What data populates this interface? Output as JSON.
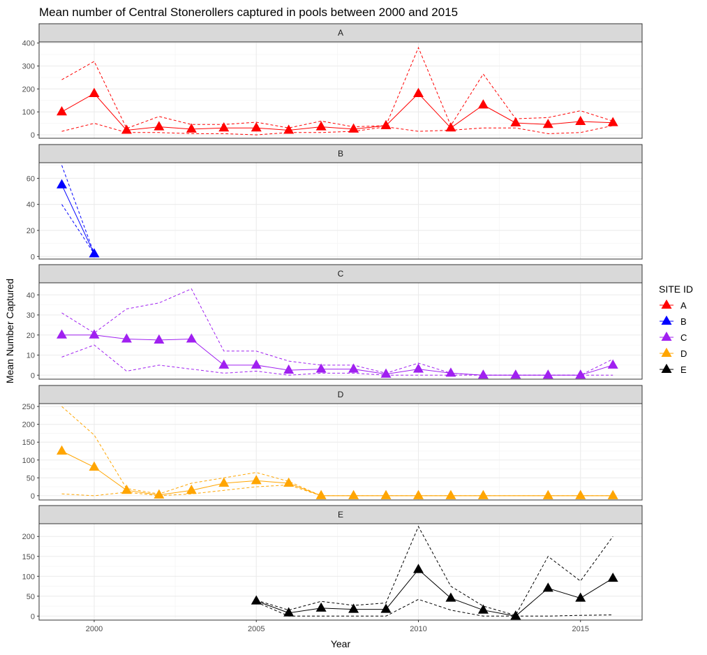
{
  "chart_data": {
    "type": "line",
    "title": "Mean number of Central Stonerollers captured in pools between 2000 and 2015",
    "xlabel": "Year",
    "ylabel": "Mean Number Captured",
    "xlim": [
      1998.3,
      2016.9
    ],
    "x_ticks": [
      2000,
      2005,
      2010,
      2015
    ],
    "legend": {
      "title": "SITE ID",
      "placement": "right",
      "entries": [
        "A",
        "B",
        "C",
        "D",
        "E"
      ]
    },
    "grid": true,
    "facets": [
      {
        "label": "A",
        "color": "#ff0000",
        "ylim": [
          -15,
          405
        ],
        "y_ticks": [
          0,
          100,
          200,
          300,
          400
        ],
        "x": [
          1999,
          2000,
          2001,
          2002,
          2003,
          2004,
          2005,
          2006,
          2007,
          2008,
          2009,
          2010,
          2011,
          2012,
          2013,
          2014,
          2015,
          2016
        ],
        "mean": [
          100,
          180,
          20,
          35,
          25,
          30,
          30,
          20,
          35,
          25,
          40,
          180,
          30,
          130,
          52,
          45,
          58,
          53
        ],
        "upper": [
          240,
          320,
          28,
          80,
          45,
          45,
          55,
          30,
          60,
          35,
          40,
          380,
          40,
          265,
          70,
          75,
          105,
          60
        ],
        "lower": [
          15,
          50,
          10,
          10,
          5,
          5,
          0,
          10,
          10,
          15,
          35,
          15,
          20,
          30,
          30,
          5,
          10,
          40
        ]
      },
      {
        "label": "B",
        "color": "#0000ff",
        "ylim": [
          -2,
          72
        ],
        "y_ticks": [
          0,
          20,
          40,
          60
        ],
        "x": [
          1999,
          2000
        ],
        "mean": [
          55,
          2
        ],
        "upper": [
          70,
          2
        ],
        "lower": [
          40,
          2
        ]
      },
      {
        "label": "C",
        "color": "#a020f0",
        "ylim": [
          -2,
          46
        ],
        "y_ticks": [
          0,
          10,
          20,
          30,
          40
        ],
        "x": [
          1999,
          2000,
          2001,
          2002,
          2003,
          2004,
          2005,
          2006,
          2007,
          2008,
          2009,
          2010,
          2011,
          2012,
          2013,
          2014,
          2015,
          2016
        ],
        "mean": [
          20,
          20,
          18,
          17.5,
          18,
          5,
          5,
          2.5,
          3,
          3,
          0.5,
          3,
          1,
          0,
          0,
          0,
          0,
          5
        ],
        "upper": [
          31,
          21,
          33,
          36,
          43,
          12,
          12,
          7,
          5,
          5,
          1,
          6,
          1,
          0,
          0,
          0,
          0,
          8
        ],
        "lower": [
          9,
          15,
          2,
          5,
          3,
          1,
          2,
          0,
          1,
          1,
          0,
          0,
          0,
          0,
          0,
          0,
          0,
          0
        ]
      },
      {
        "label": "D",
        "color": "#ffa500",
        "ylim": [
          -12,
          258
        ],
        "y_ticks": [
          0,
          50,
          100,
          150,
          200,
          250
        ],
        "x": [
          1999,
          2000,
          2001,
          2002,
          2003,
          2004,
          2005,
          2006,
          2007,
          2008,
          2009,
          2010,
          2011,
          2012,
          2014,
          2015,
          2016
        ],
        "mean": [
          125,
          80,
          15,
          2,
          15,
          35,
          42,
          35,
          0,
          0,
          0,
          0,
          0,
          0,
          0,
          0,
          0
        ],
        "upper": [
          250,
          170,
          20,
          5,
          35,
          50,
          65,
          40,
          0,
          0,
          0,
          0,
          0,
          0,
          0,
          0,
          0
        ],
        "lower": [
          5,
          0,
          10,
          0,
          5,
          15,
          25,
          30,
          0,
          0,
          0,
          0,
          0,
          0,
          0,
          0,
          0
        ]
      },
      {
        "label": "E",
        "color": "#000000",
        "ylim": [
          -10,
          232
        ],
        "y_ticks": [
          0,
          50,
          100,
          150,
          200
        ],
        "x": [
          2005,
          2006,
          2007,
          2008,
          2009,
          2010,
          2011,
          2012,
          2013,
          2014,
          2015,
          2016
        ],
        "mean": [
          38,
          8,
          20,
          17,
          17,
          117,
          45,
          15,
          0,
          70,
          45,
          95
        ],
        "upper": [
          40,
          15,
          37,
          27,
          33,
          225,
          75,
          25,
          2,
          150,
          88,
          200
        ],
        "lower": [
          35,
          0,
          0,
          0,
          0,
          42,
          15,
          0,
          0,
          0,
          2,
          3
        ]
      }
    ]
  }
}
